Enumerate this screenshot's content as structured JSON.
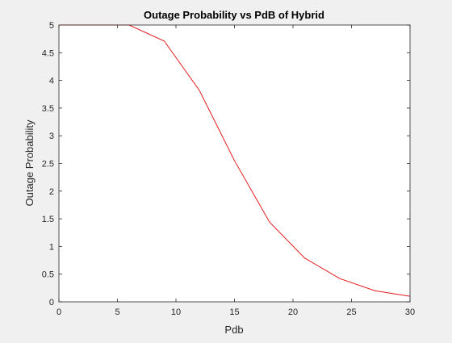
{
  "chart_data": {
    "type": "line",
    "title": "Outage Probability vs PdB of Hybrid",
    "xlabel": "Pdb",
    "ylabel": "Outage Probability",
    "xlim": [
      0,
      30
    ],
    "ylim": [
      0,
      5
    ],
    "xticks": [
      0,
      5,
      10,
      15,
      20,
      25,
      30
    ],
    "xtick_labels": [
      "0",
      "5",
      "10",
      "15",
      "20",
      "25",
      "30"
    ],
    "yticks": [
      0,
      0.5,
      1,
      1.5,
      2,
      2.5,
      3,
      3.5,
      4,
      4.5,
      5
    ],
    "ytick_labels": [
      "0",
      "0.5",
      "1",
      "1.5",
      "2",
      "2.5",
      "3",
      "3.5",
      "4",
      "4.5",
      "5"
    ],
    "grid": false,
    "series": [
      {
        "color": "#e41a1c",
        "x": [
          0,
          3,
          6,
          9,
          12,
          15,
          18,
          21,
          24,
          27,
          30
        ],
        "y": [
          5,
          5,
          5,
          4.71,
          3.82,
          2.55,
          1.44,
          0.79,
          0.42,
          0.2,
          0.1
        ]
      }
    ]
  }
}
